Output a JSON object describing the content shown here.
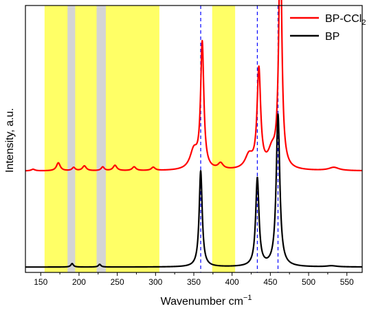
{
  "chart_data": {
    "type": "line",
    "xlabel": "Wavenumber cm",
    "xlabel_sup": "−1",
    "ylabel": "Intensity, a.u.",
    "xlim": [
      130,
      570
    ],
    "ylim": [
      0,
      1
    ],
    "x_ticks": [
      150,
      200,
      250,
      300,
      350,
      400,
      450,
      500,
      550
    ],
    "x_minor_ticks": [
      175,
      225,
      275,
      325,
      375,
      425,
      475,
      525
    ],
    "y_ticks_labeled": false,
    "grid": false,
    "legend_position": "top-right",
    "shaded_regions": [
      {
        "from": 155,
        "to": 305,
        "color": "#ffff66"
      },
      {
        "from": 374,
        "to": 404,
        "color": "#ffff66"
      },
      {
        "from": 185,
        "to": 195,
        "color": "#d4d4d4"
      },
      {
        "from": 223,
        "to": 235,
        "color": "#d4d4d4"
      }
    ],
    "reference_lines": {
      "x": [
        359,
        433,
        460
      ],
      "style": "dashed",
      "color": "#0000ff"
    },
    "series": [
      {
        "name": "BP-CCl",
        "name_sub": "2",
        "color": "#ff0000",
        "baseline": 0.38,
        "peaks": [
          {
            "x": 140,
            "h": 0.006,
            "w": 3
          },
          {
            "x": 173,
            "h": 0.03,
            "w": 3
          },
          {
            "x": 193,
            "h": 0.012,
            "w": 2.5
          },
          {
            "x": 207,
            "h": 0.018,
            "w": 3
          },
          {
            "x": 231,
            "h": 0.014,
            "w": 2.5
          },
          {
            "x": 247,
            "h": 0.02,
            "w": 3
          },
          {
            "x": 272,
            "h": 0.014,
            "w": 3
          },
          {
            "x": 297,
            "h": 0.012,
            "w": 3
          },
          {
            "x": 350,
            "h": 0.07,
            "w": 6
          },
          {
            "x": 361,
            "h": 0.47,
            "w": 2.5
          },
          {
            "x": 385,
            "h": 0.022,
            "w": 4
          },
          {
            "x": 422,
            "h": 0.05,
            "w": 6
          },
          {
            "x": 435,
            "h": 0.37,
            "w": 2.8
          },
          {
            "x": 452,
            "h": 0.06,
            "w": 6
          },
          {
            "x": 463,
            "h": 0.88,
            "w": 2.4
          },
          {
            "x": 533,
            "h": 0.012,
            "w": 8
          }
        ]
      },
      {
        "name": "BP",
        "color": "#000000",
        "baseline": 0.02,
        "peaks": [
          {
            "x": 191,
            "h": 0.013,
            "w": 2
          },
          {
            "x": 227,
            "h": 0.01,
            "w": 2
          },
          {
            "x": 359,
            "h": 0.36,
            "w": 2.4
          },
          {
            "x": 433,
            "h": 0.33,
            "w": 2.6
          },
          {
            "x": 460,
            "h": 0.57,
            "w": 2.8
          },
          {
            "x": 530,
            "h": 0.004,
            "w": 8
          }
        ]
      }
    ]
  }
}
